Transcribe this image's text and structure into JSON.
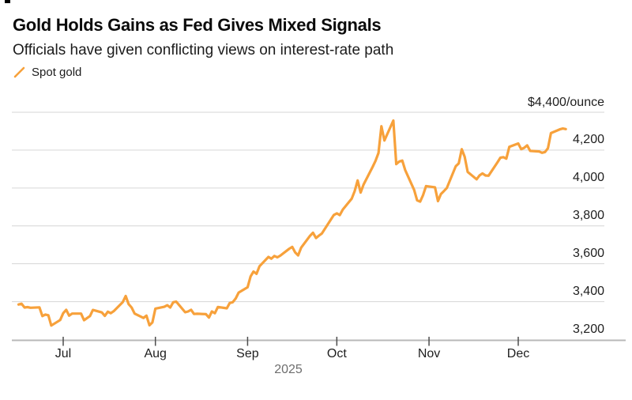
{
  "chart_data": {
    "type": "line",
    "title": "Gold Holds Gains as Fed Gives Mixed Signals",
    "subtitle": "Officials have given conflicting views on interest-rate path",
    "legend": {
      "position": "top-left",
      "entries": [
        {
          "label": "Spot gold",
          "color": "#F7A13B"
        }
      ]
    },
    "grid": "horizontal",
    "ylim": [
      3200,
      4400
    ],
    "xlim": [
      "2025-06-16",
      "2025-12-17"
    ],
    "x_label_year": "2025",
    "x_ticks": [
      {
        "date": "2025-07-01",
        "label": "Jul"
      },
      {
        "date": "2025-08-01",
        "label": "Aug"
      },
      {
        "date": "2025-09-01",
        "label": "Sep"
      },
      {
        "date": "2025-10-01",
        "label": "Oct"
      },
      {
        "date": "2025-11-01",
        "label": "Nov"
      },
      {
        "date": "2025-12-01",
        "label": "Dec"
      }
    ],
    "y_ticks": [
      {
        "value": 3200,
        "label": "3,200"
      },
      {
        "value": 3400,
        "label": "3,400"
      },
      {
        "value": 3600,
        "label": "3,600"
      },
      {
        "value": 3800,
        "label": "3,800"
      },
      {
        "value": 4000,
        "label": "4,000"
      },
      {
        "value": 4200,
        "label": "4,200"
      },
      {
        "value": 4400,
        "label": "$4,400/ounce"
      }
    ],
    "series": [
      {
        "name": "Spot gold",
        "color": "#F7A13B",
        "unit": "USD/ounce",
        "points": [
          [
            "2025-06-16",
            3385
          ],
          [
            "2025-06-17",
            3389
          ],
          [
            "2025-06-18",
            3369
          ],
          [
            "2025-06-19",
            3371
          ],
          [
            "2025-06-20",
            3368
          ],
          [
            "2025-06-23",
            3370
          ],
          [
            "2025-06-24",
            3324
          ],
          [
            "2025-06-25",
            3332
          ],
          [
            "2025-06-26",
            3328
          ],
          [
            "2025-06-27",
            3274
          ],
          [
            "2025-06-30",
            3303
          ],
          [
            "2025-07-01",
            3339
          ],
          [
            "2025-07-02",
            3357
          ],
          [
            "2025-07-03",
            3326
          ],
          [
            "2025-07-04",
            3337
          ],
          [
            "2025-07-07",
            3337
          ],
          [
            "2025-07-08",
            3302
          ],
          [
            "2025-07-09",
            3313
          ],
          [
            "2025-07-10",
            3324
          ],
          [
            "2025-07-11",
            3356
          ],
          [
            "2025-07-14",
            3343
          ],
          [
            "2025-07-15",
            3325
          ],
          [
            "2025-07-16",
            3347
          ],
          [
            "2025-07-17",
            3339
          ],
          [
            "2025-07-18",
            3350
          ],
          [
            "2025-07-21",
            3397
          ],
          [
            "2025-07-22",
            3430
          ],
          [
            "2025-07-23",
            3387
          ],
          [
            "2025-07-24",
            3369
          ],
          [
            "2025-07-25",
            3337
          ],
          [
            "2025-07-28",
            3314
          ],
          [
            "2025-07-29",
            3326
          ],
          [
            "2025-07-30",
            3275
          ],
          [
            "2025-07-31",
            3290
          ],
          [
            "2025-08-01",
            3363
          ],
          [
            "2025-08-04",
            3373
          ],
          [
            "2025-08-05",
            3381
          ],
          [
            "2025-08-06",
            3369
          ],
          [
            "2025-08-07",
            3397
          ],
          [
            "2025-08-08",
            3400
          ],
          [
            "2025-08-11",
            3344
          ],
          [
            "2025-08-12",
            3348
          ],
          [
            "2025-08-13",
            3357
          ],
          [
            "2025-08-14",
            3335
          ],
          [
            "2025-08-15",
            3336
          ],
          [
            "2025-08-18",
            3334
          ],
          [
            "2025-08-19",
            3316
          ],
          [
            "2025-08-20",
            3348
          ],
          [
            "2025-08-21",
            3339
          ],
          [
            "2025-08-22",
            3372
          ],
          [
            "2025-08-25",
            3365
          ],
          [
            "2025-08-26",
            3393
          ],
          [
            "2025-08-27",
            3397
          ],
          [
            "2025-08-28",
            3417
          ],
          [
            "2025-08-29",
            3448
          ],
          [
            "2025-09-01",
            3476
          ],
          [
            "2025-09-02",
            3533
          ],
          [
            "2025-09-03",
            3559
          ],
          [
            "2025-09-04",
            3547
          ],
          [
            "2025-09-05",
            3587
          ],
          [
            "2025-09-08",
            3636
          ],
          [
            "2025-09-09",
            3627
          ],
          [
            "2025-09-10",
            3641
          ],
          [
            "2025-09-11",
            3634
          ],
          [
            "2025-09-12",
            3643
          ],
          [
            "2025-09-15",
            3679
          ],
          [
            "2025-09-16",
            3689
          ],
          [
            "2025-09-17",
            3660
          ],
          [
            "2025-09-18",
            3644
          ],
          [
            "2025-09-19",
            3685
          ],
          [
            "2025-09-22",
            3748
          ],
          [
            "2025-09-23",
            3764
          ],
          [
            "2025-09-24",
            3736
          ],
          [
            "2025-09-25",
            3749
          ],
          [
            "2025-09-26",
            3760
          ],
          [
            "2025-09-29",
            3833
          ],
          [
            "2025-09-30",
            3858
          ],
          [
            "2025-10-01",
            3866
          ],
          [
            "2025-10-02",
            3857
          ],
          [
            "2025-10-03",
            3886
          ],
          [
            "2025-10-06",
            3944
          ],
          [
            "2025-10-07",
            3983
          ],
          [
            "2025-10-08",
            4040
          ],
          [
            "2025-10-09",
            3976
          ],
          [
            "2025-10-10",
            4018
          ],
          [
            "2025-10-13",
            4110
          ],
          [
            "2025-10-14",
            4143
          ],
          [
            "2025-10-15",
            4185
          ],
          [
            "2025-10-16",
            4326
          ],
          [
            "2025-10-17",
            4251
          ],
          [
            "2025-10-20",
            4356
          ],
          [
            "2025-10-21",
            4126
          ],
          [
            "2025-10-22",
            4140
          ],
          [
            "2025-10-23",
            4145
          ],
          [
            "2025-10-24",
            4095
          ],
          [
            "2025-10-27",
            3990
          ],
          [
            "2025-10-28",
            3935
          ],
          [
            "2025-10-29",
            3928
          ],
          [
            "2025-10-30",
            3962
          ],
          [
            "2025-10-31",
            4010
          ],
          [
            "2025-11-03",
            4004
          ],
          [
            "2025-11-04",
            3931
          ],
          [
            "2025-11-05",
            3968
          ],
          [
            "2025-11-06",
            3984
          ],
          [
            "2025-11-07",
            4000
          ],
          [
            "2025-11-10",
            4115
          ],
          [
            "2025-11-11",
            4130
          ],
          [
            "2025-11-12",
            4205
          ],
          [
            "2025-11-13",
            4165
          ],
          [
            "2025-11-14",
            4085
          ],
          [
            "2025-11-17",
            4046
          ],
          [
            "2025-11-18",
            4067
          ],
          [
            "2025-11-19",
            4077
          ],
          [
            "2025-11-20",
            4066
          ],
          [
            "2025-11-21",
            4065
          ],
          [
            "2025-11-24",
            4135
          ],
          [
            "2025-11-25",
            4160
          ],
          [
            "2025-11-26",
            4163
          ],
          [
            "2025-11-27",
            4155
          ],
          [
            "2025-11-28",
            4217
          ],
          [
            "2025-12-01",
            4235
          ],
          [
            "2025-12-02",
            4205
          ],
          [
            "2025-12-03",
            4212
          ],
          [
            "2025-12-04",
            4225
          ],
          [
            "2025-12-05",
            4196
          ],
          [
            "2025-12-08",
            4193
          ],
          [
            "2025-12-09",
            4186
          ],
          [
            "2025-12-10",
            4190
          ],
          [
            "2025-12-11",
            4210
          ],
          [
            "2025-12-12",
            4290
          ],
          [
            "2025-12-15",
            4310
          ],
          [
            "2025-12-16",
            4314
          ],
          [
            "2025-12-17",
            4311
          ]
        ]
      }
    ]
  },
  "colors": {
    "background": "#FFFFFF",
    "title": "#0B0B0B",
    "text": "#1C1C1C",
    "axis_text": "#1E1E1E",
    "muted_text": "#6E6E6E",
    "grid": "#D6D6D6",
    "axis": "#B8B8B8",
    "tick": "#4D4D4D",
    "line": "#F7A13B"
  }
}
